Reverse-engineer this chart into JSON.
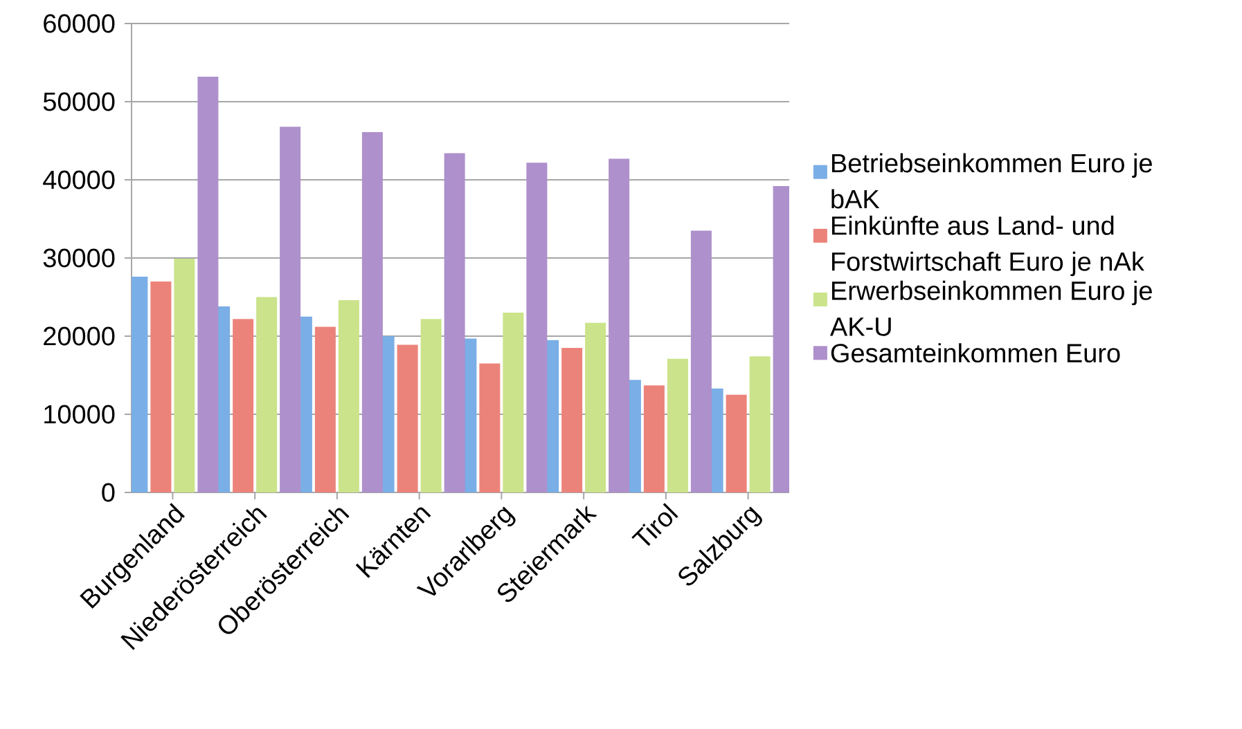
{
  "chart_data": {
    "type": "bar",
    "categories": [
      "Burgenland",
      "Niederösterreich",
      "Oberösterreich",
      "Kärnten",
      "Vorarlberg",
      "Steiermark",
      "Tirol",
      "Salzburg"
    ],
    "series": [
      {
        "name": "Betriebseinkommen Euro je bAK",
        "color": "#7aaee6",
        "values": [
          27600,
          23800,
          22500,
          20000,
          19700,
          19500,
          14400,
          13300
        ]
      },
      {
        "name": "Einkünfte aus Land- und Forstwirtschaft Euro je nAk",
        "color": "#ec837a",
        "values": [
          27000,
          22200,
          21200,
          18900,
          16500,
          18500,
          13700,
          12500
        ]
      },
      {
        "name": "Erwerbseinkommen Euro je AK-U",
        "color": "#cbe38a",
        "values": [
          29900,
          25000,
          24600,
          22200,
          23000,
          21700,
          17100,
          17400
        ]
      },
      {
        "name": "Gesamteinkommen Euro",
        "color": "#ae90cc",
        "values": [
          53200,
          46800,
          46100,
          43400,
          42200,
          42700,
          33500,
          39200
        ]
      }
    ],
    "ylim": [
      0,
      60000
    ],
    "yticks": [
      0,
      10000,
      20000,
      30000,
      40000,
      50000,
      60000
    ],
    "grid": "y",
    "legend": "right"
  }
}
